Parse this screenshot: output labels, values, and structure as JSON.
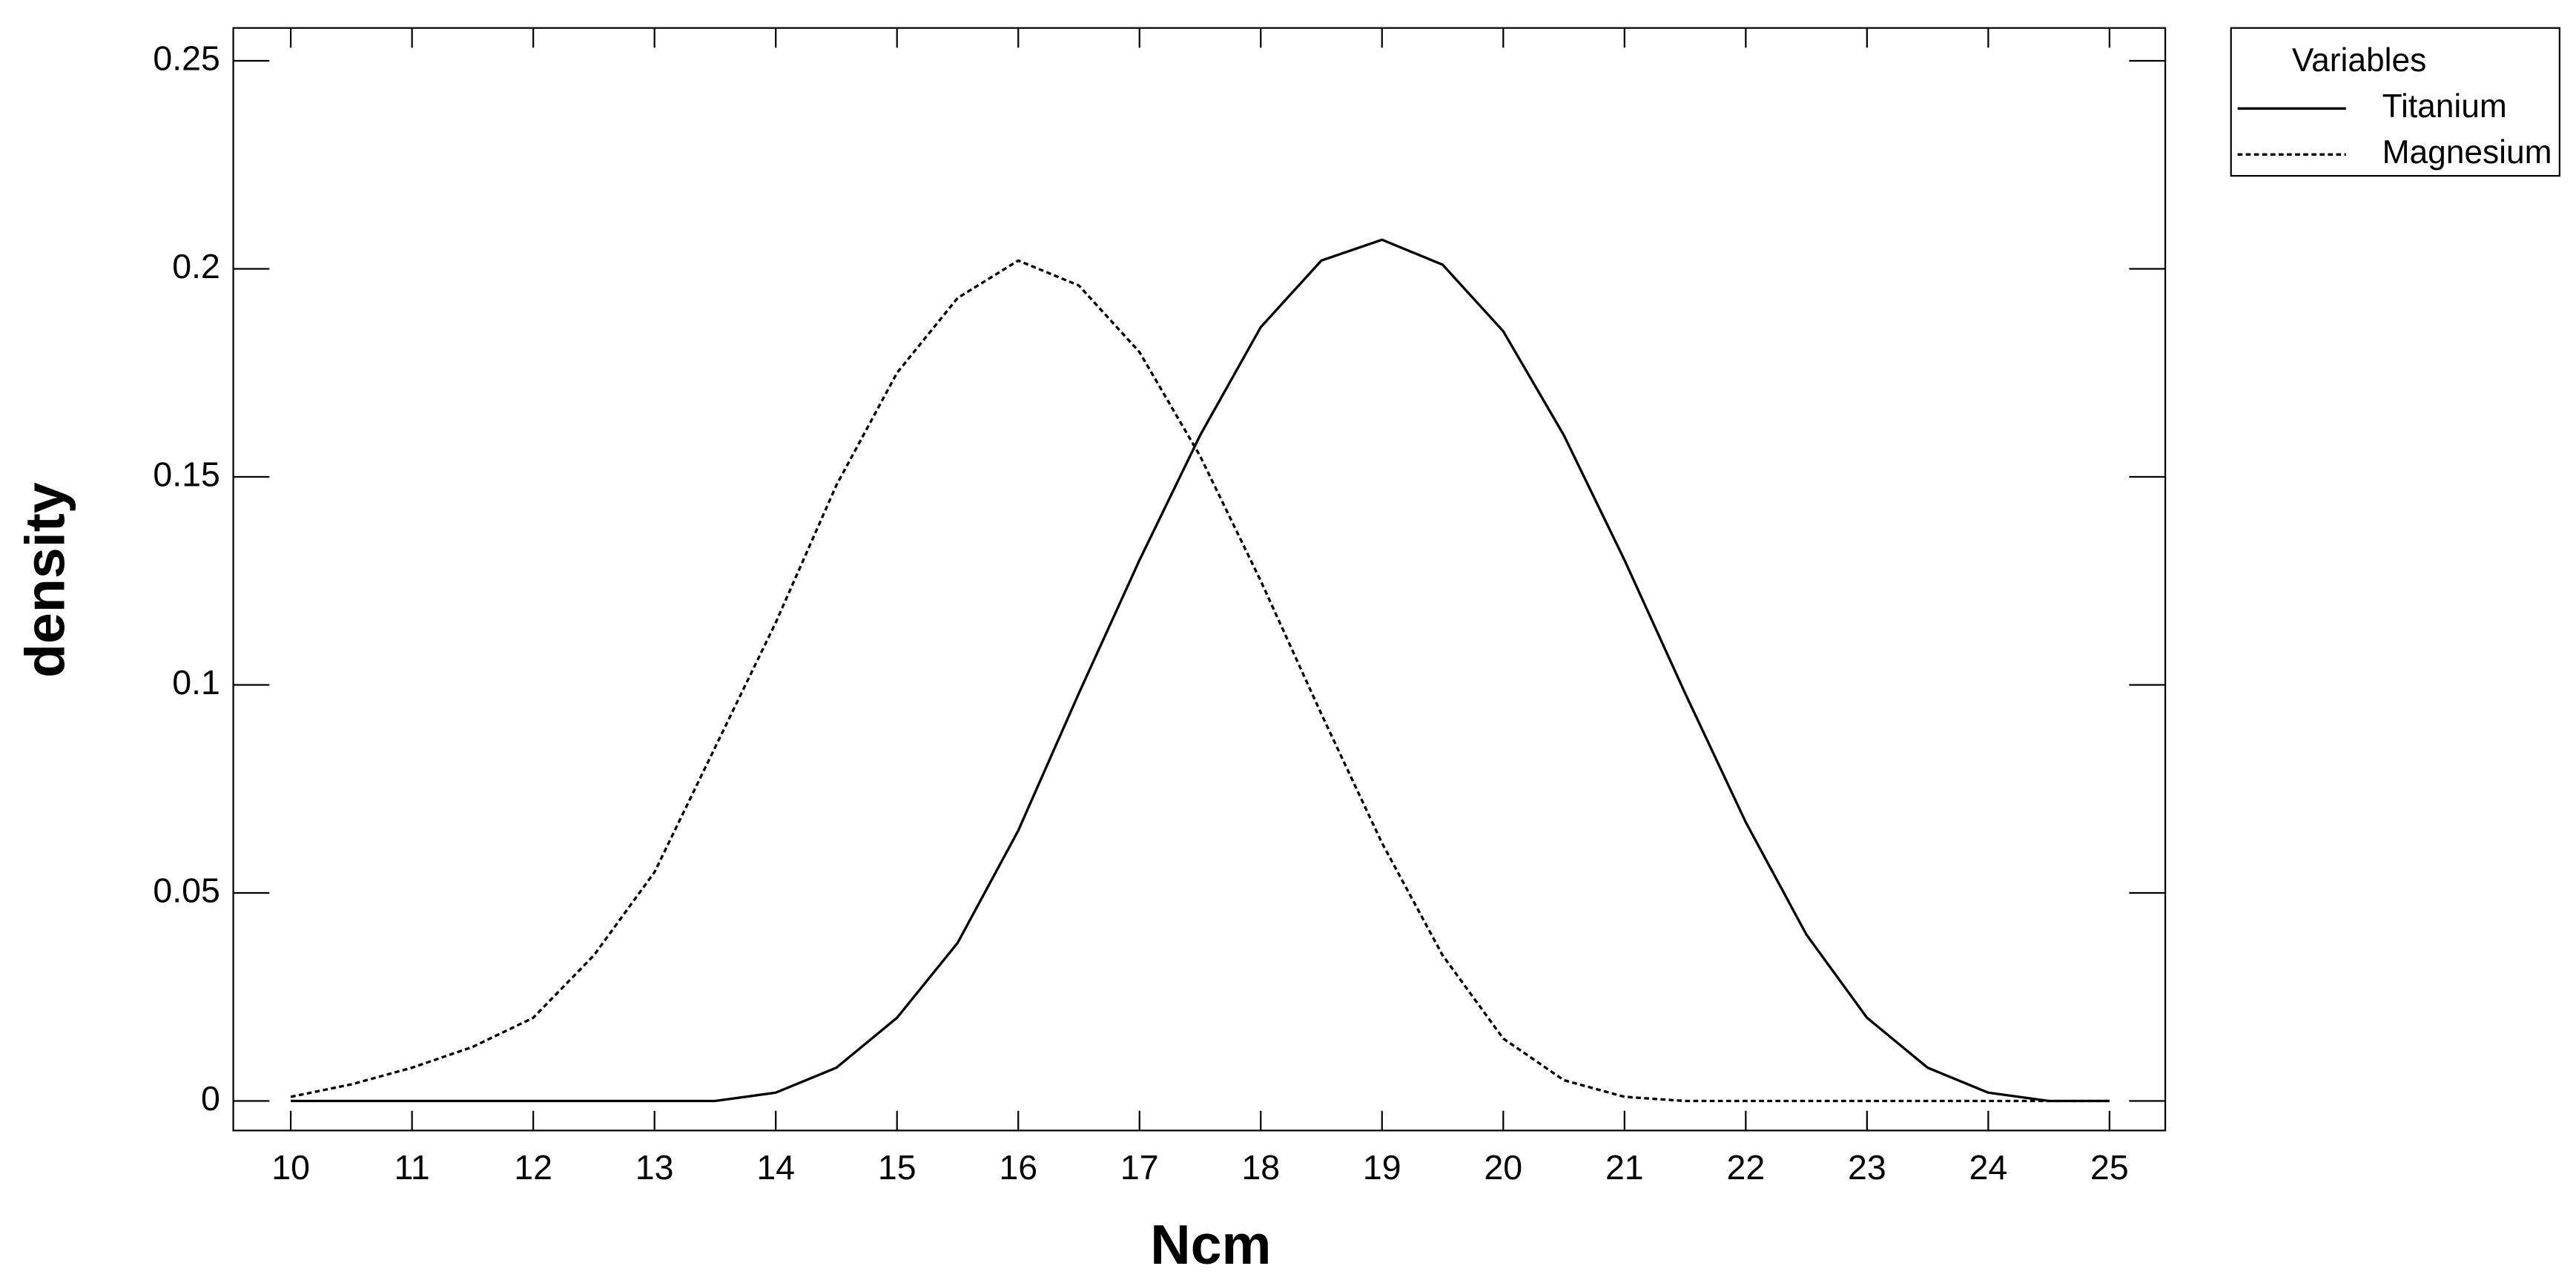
{
  "chart_data": {
    "type": "line",
    "xlabel": "Ncm",
    "ylabel": "density",
    "x": [
      10,
      10.5,
      11,
      11.5,
      12,
      12.5,
      13,
      13.5,
      14,
      14.5,
      15,
      15.5,
      16,
      16.5,
      17,
      17.5,
      18,
      18.5,
      19,
      19.5,
      20,
      20.5,
      21,
      21.5,
      22,
      22.5,
      23,
      23.5,
      24,
      24.5,
      25
    ],
    "series": [
      {
        "name": "Titanium",
        "color": "#000000",
        "dash": "solid",
        "values": [
          0,
          0,
          0,
          0,
          0,
          0,
          0,
          0,
          0.002,
          0.008,
          0.02,
          0.038,
          0.065,
          0.098,
          0.13,
          0.16,
          0.186,
          0.202,
          0.207,
          0.201,
          0.185,
          0.16,
          0.13,
          0.098,
          0.067,
          0.04,
          0.02,
          0.008,
          0.002,
          0,
          0
        ]
      },
      {
        "name": "Magnesium",
        "color": "#000000",
        "dash": "dotted",
        "values": [
          0.001,
          0.004,
          0.008,
          0.013,
          0.02,
          0.035,
          0.055,
          0.085,
          0.115,
          0.148,
          0.175,
          0.193,
          0.202,
          0.196,
          0.18,
          0.155,
          0.125,
          0.093,
          0.062,
          0.035,
          0.015,
          0.005,
          0.001,
          0,
          0,
          0,
          0,
          0,
          0,
          0,
          0
        ]
      }
    ],
    "legend_title": "Variables",
    "legend": "outside-top-right",
    "xlim": [
      9.526,
      25.46
    ],
    "xticks": [
      10,
      11,
      12,
      13,
      14,
      15,
      16,
      17,
      18,
      19,
      20,
      21,
      22,
      23,
      24,
      25
    ],
    "ylim": [
      -0.0071,
      0.2579
    ],
    "yticks": [
      0,
      0.05,
      0.1,
      0.15,
      0.2,
      0.25
    ]
  }
}
